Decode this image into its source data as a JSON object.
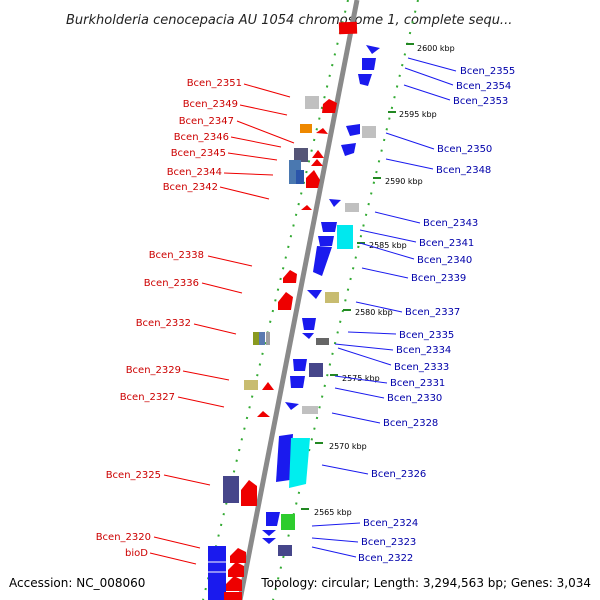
{
  "title": "Burkholderia cenocepacia AU 1054 chromosome 1, complete sequ...",
  "footer": {
    "accession": "Accession: NC_008060",
    "summary": "Topology: circular; Length: 3,294,563 bp; Genes: 3,034"
  },
  "ticks": [
    "2600 kbp",
    "2595 kbp",
    "2590 kbp",
    "2585 kbp",
    "2580 kbp",
    "2575 kbp",
    "2570 kbp",
    "2565 kbp"
  ],
  "left_labels": [
    "Bcen_2351",
    "Bcen_2349",
    "Bcen_2347",
    "Bcen_2346",
    "Bcen_2345",
    "Bcen_2344",
    "Bcen_2342",
    "Bcen_2338",
    "Bcen_2336",
    "Bcen_2332",
    "Bcen_2329",
    "Bcen_2327",
    "Bcen_2325",
    "Bcen_2320",
    "bioD"
  ],
  "right_labels": [
    "Bcen_2355",
    "Bcen_2354",
    "Bcen_2353",
    "Bcen_2350",
    "Bcen_2348",
    "Bcen_2343",
    "Bcen_2341",
    "Bcen_2340",
    "Bcen_2339",
    "Bcen_2337",
    "Bcen_2335",
    "Bcen_2334",
    "Bcen_2333",
    "Bcen_2331",
    "Bcen_2330",
    "Bcen_2328",
    "Bcen_2326",
    "Bcen_2324",
    "Bcen_2323",
    "Bcen_2322"
  ],
  "colors": {
    "forward_gene": "#ee0000",
    "reverse_gene": "#1a1aee",
    "backbone": "#888888",
    "tick": "#228822",
    "left_label": "#cc0000",
    "right_label": "#0000aa"
  }
}
